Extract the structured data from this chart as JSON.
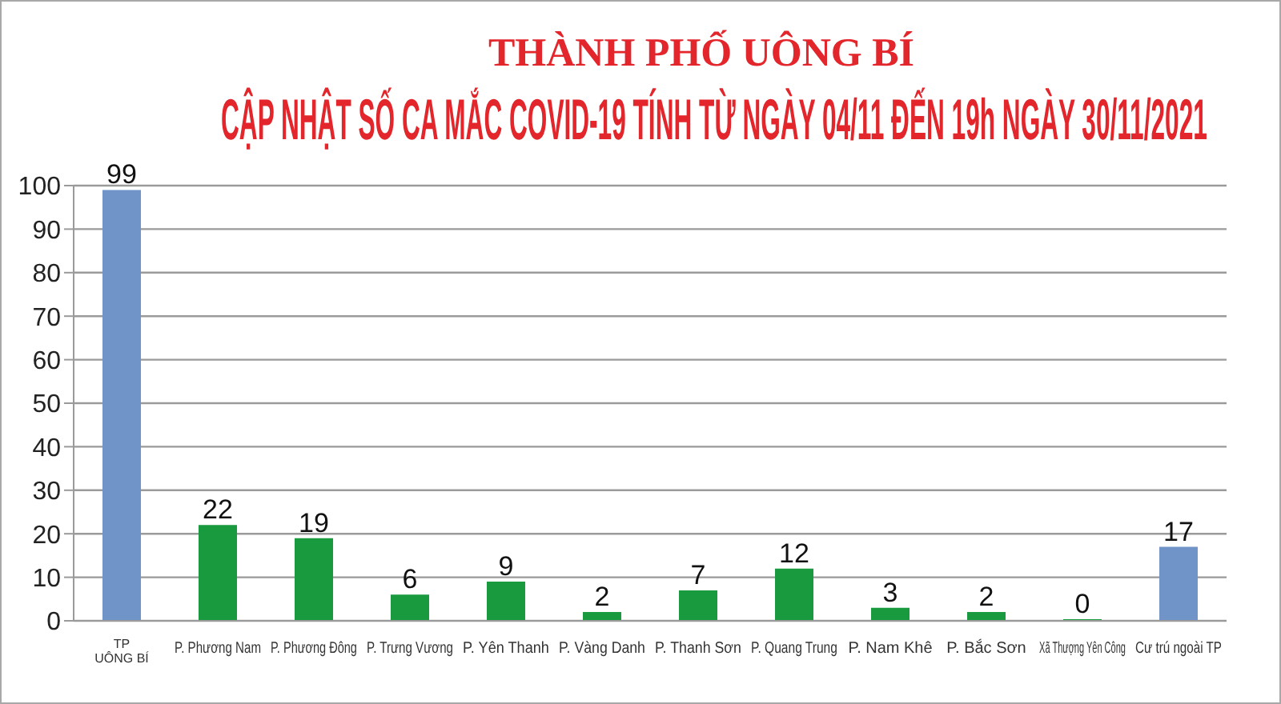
{
  "chart_data": {
    "type": "bar",
    "title": "THÀNH PHỐ UÔNG BÍ",
    "subtitle": "CẬP NHẬT SỐ CA MẮC COVID-19 TÍNH TỪ NGÀY 04/11 ĐẾN 19h NGÀY 30/11/2021",
    "categories": [
      "TP\nUÔNG BÍ",
      "P. Phương Nam",
      "P. Phương Đông",
      "P. Trưng Vương",
      "P. Yên Thanh",
      "P. Vàng Danh",
      "P. Thanh Sơn",
      "P. Quang Trung",
      "P. Nam Khê",
      "P. Bắc Sơn",
      "Xã Thượng Yên Công",
      "Cư trú ngoài TP"
    ],
    "values": [
      99,
      22,
      19,
      6,
      9,
      2,
      7,
      12,
      3,
      2,
      0,
      17
    ],
    "colors": [
      "#7094c8",
      "#1a9a3e",
      "#1a9a3e",
      "#1a9a3e",
      "#1a9a3e",
      "#1a9a3e",
      "#1a9a3e",
      "#1a9a3e",
      "#1a9a3e",
      "#1a9a3e",
      "#1a9a3e",
      "#7094c8"
    ],
    "ylim": [
      0,
      100
    ],
    "yticks": [
      0,
      10,
      20,
      30,
      40,
      50,
      60,
      70,
      80,
      90,
      100
    ],
    "grid": "y",
    "data_labels": true
  }
}
